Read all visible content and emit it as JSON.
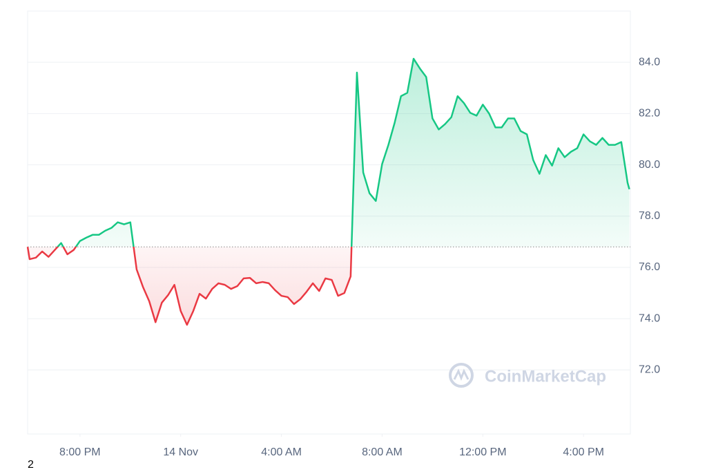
{
  "chart_data": {
    "type": "line",
    "x": [
      -6.08,
      -6,
      -5.75,
      -5.5,
      -5.25,
      -5,
      -4.75,
      -4.5,
      -4.25,
      -4,
      -3.75,
      -3.5,
      -3.25,
      -3,
      -2.75,
      -2.5,
      -2.25,
      -2,
      -1.75,
      -1.5,
      -1.25,
      -1,
      -0.75,
      -0.5,
      -0.25,
      0,
      0.25,
      0.5,
      0.75,
      1,
      1.25,
      1.5,
      1.75,
      2,
      2.25,
      2.5,
      2.75,
      3,
      3.25,
      3.5,
      3.75,
      4,
      4.25,
      4.5,
      4.75,
      5,
      5.25,
      5.5,
      5.75,
      6,
      6.25,
      6.5,
      6.75,
      7,
      7.25,
      7.5,
      7.75,
      8,
      8.25,
      8.5,
      8.75,
      9,
      9.25,
      9.5,
      9.75,
      10,
      10.25,
      10.5,
      10.75,
      11,
      11.25,
      11.5,
      11.75,
      12,
      12.25,
      12.5,
      12.75,
      13,
      13.25,
      13.5,
      13.75,
      14,
      14.25,
      14.5,
      14.75,
      15,
      15.25,
      15.5,
      15.75,
      16,
      16.25,
      16.5,
      16.75,
      17,
      17.25,
      17.5,
      17.75,
      17.82
    ],
    "series": [
      {
        "name": "Price",
        "color": "#16c784",
        "color_below": "#ea3943",
        "values": [
          76.8,
          76.32,
          76.38,
          76.62,
          76.41,
          76.68,
          76.95,
          76.51,
          76.68,
          77.03,
          77.16,
          77.27,
          77.27,
          77.43,
          77.54,
          77.76,
          77.68,
          77.76,
          75.92,
          75.24,
          74.68,
          73.86,
          74.62,
          74.92,
          75.32,
          74.3,
          73.76,
          74.3,
          74.97,
          74.78,
          75.16,
          75.38,
          75.32,
          75.16,
          75.27,
          75.57,
          75.59,
          75.38,
          75.43,
          75.38,
          75.11,
          74.89,
          74.84,
          74.57,
          74.76,
          75.05,
          75.38,
          75.08,
          75.57,
          75.51,
          74.89,
          75,
          75.65,
          83.6,
          79.7,
          78.89,
          78.59,
          80.03,
          80.78,
          81.65,
          82.68,
          82.81,
          84.14,
          83.76,
          83.43,
          81.81,
          81.38,
          81.59,
          81.86,
          82.68,
          82.41,
          82.03,
          81.92,
          82.35,
          82,
          81.46,
          81.46,
          81.81,
          81.81,
          81.32,
          81.19,
          80.19,
          79.65,
          80.38,
          79.97,
          80.65,
          80.3,
          80.51,
          80.65,
          81.19,
          80.92,
          80.78,
          81.05,
          80.78,
          80.78,
          80.89,
          79.3,
          79.05
        ]
      }
    ],
    "baseline": 76.8,
    "xlim": [
      -6.08,
      17.86
    ],
    "xticks": [
      {
        "value": -4,
        "label": "8:00 PM"
      },
      {
        "value": 0,
        "label": "14 Nov"
      },
      {
        "value": 4,
        "label": "4:00 AM"
      },
      {
        "value": 8,
        "label": "8:00 AM"
      },
      {
        "value": 12,
        "label": "12:00 PM"
      },
      {
        "value": 16,
        "label": "4:00 PM"
      }
    ],
    "ylim": [
      69.5,
      86.0
    ],
    "yticks": [
      {
        "value": 72,
        "label": "72.0"
      },
      {
        "value": 74,
        "label": "74.0"
      },
      {
        "value": 76,
        "label": "76.0"
      },
      {
        "value": 78,
        "label": "78.0"
      },
      {
        "value": 80,
        "label": "80.0"
      },
      {
        "value": 82,
        "label": "82.0"
      },
      {
        "value": 84,
        "label": "84.0"
      }
    ],
    "grid": true,
    "watermark": "CoinMarketCap",
    "footnote": "2"
  }
}
